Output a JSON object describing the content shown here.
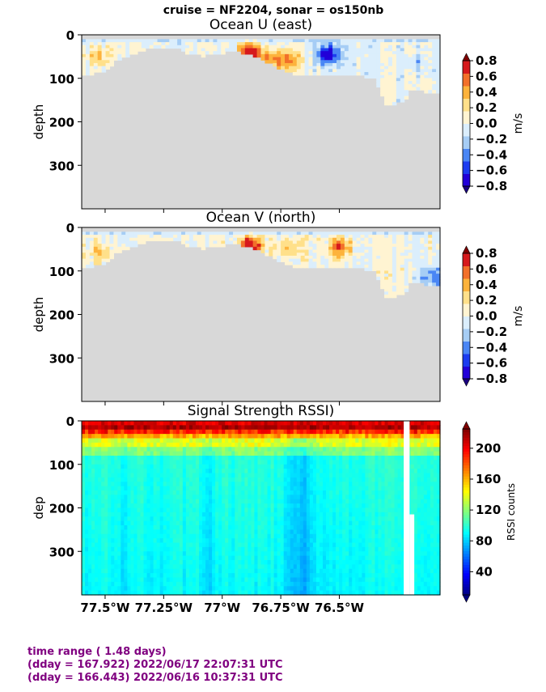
{
  "suptitle": "cruise = NF2204,  sonar = os150nb",
  "colors": {
    "land": "#d8d8d8",
    "footer": "#800080",
    "velocity_levels": [
      "#2200d8",
      "#1c3cf0",
      "#4a86f5",
      "#a6cdf5",
      "#dbeefc",
      "#fff4d2",
      "#ffe08a",
      "#fdb33c",
      "#f2702a",
      "#d6191c"
    ],
    "rssi_map": [
      "#00007f",
      "#0000ff",
      "#007fff",
      "#00ffff",
      "#7fff7f",
      "#ffff00",
      "#ff7f00",
      "#ff0000",
      "#7f0000"
    ]
  },
  "chart_data": [
    {
      "type": "heatmap",
      "title": "Ocean U (east)",
      "ylabel": "depth",
      "yticks": [
        "0",
        "100",
        "200",
        "300"
      ],
      "ylim": [
        400,
        0
      ],
      "xlim": [
        -77.6,
        -76.07
      ],
      "colorbar": {
        "label": "m/s",
        "ticks": [
          "0.8",
          "0.6",
          "0.4",
          "0.2",
          "0.0",
          "−0.2",
          "−0.4",
          "−0.6",
          "−0.8"
        ],
        "range": [
          -0.8,
          0.8
        ],
        "extend": "both"
      },
      "features": [
        {
          "lon": -76.88,
          "depth": 38,
          "value": 0.85
        },
        {
          "lon": -76.78,
          "depth": 55,
          "value": 0.45
        },
        {
          "lon": -76.71,
          "depth": 55,
          "value": 0.45
        },
        {
          "lon": -76.55,
          "depth": 42,
          "value": -0.85
        },
        {
          "lon": -77.53,
          "depth": 48,
          "value": 0.35
        },
        {
          "lon": -76.17,
          "depth": 60,
          "value": -0.2
        }
      ]
    },
    {
      "type": "heatmap",
      "title": "Ocean V (north)",
      "ylabel": "depth",
      "yticks": [
        "0",
        "100",
        "200",
        "300"
      ],
      "ylim": [
        400,
        0
      ],
      "xlim": [
        -77.6,
        -76.07
      ],
      "colorbar": {
        "label": "m/s",
        "ticks": [
          "0.8",
          "0.6",
          "0.4",
          "0.2",
          "0.0",
          "−0.2",
          "−0.4",
          "−0.6",
          "−0.8"
        ],
        "range": [
          -0.8,
          0.8
        ],
        "extend": "both"
      },
      "features": [
        {
          "lon": -76.88,
          "depth": 38,
          "value": 0.85
        },
        {
          "lon": -76.5,
          "depth": 42,
          "value": 0.55
        },
        {
          "lon": -76.7,
          "depth": 45,
          "value": 0.35
        },
        {
          "lon": -77.52,
          "depth": 52,
          "value": 0.3
        },
        {
          "lon": -76.1,
          "depth": 110,
          "value": -0.45
        }
      ]
    },
    {
      "type": "heatmap",
      "title": "Signal Strength RSSI)",
      "ylabel": "dep",
      "yticks": [
        "0",
        "100",
        "200",
        "300"
      ],
      "ylim": [
        400,
        0
      ],
      "xlim": [
        -77.6,
        -76.07
      ],
      "xticks": [
        {
          "value": -77.5,
          "label": "77.5°W"
        },
        {
          "value": -77.25,
          "label": "77.25°W"
        },
        {
          "value": -77.0,
          "label": "77°W"
        },
        {
          "value": -76.75,
          "label": "76.75°W"
        },
        {
          "value": -76.5,
          "label": "76.5°W"
        }
      ],
      "colorbar": {
        "label": "RSSI counts",
        "ticks": [
          "200",
          "160",
          "120",
          "80",
          "40"
        ],
        "range": [
          10,
          225
        ],
        "extend": "both"
      },
      "gaps": [
        {
          "lon_from": -76.225,
          "lon_to": -76.2,
          "depth_from": 0,
          "depth_to": 400
        },
        {
          "lon_from": -76.2,
          "lon_to": -76.18,
          "depth_from": 215,
          "depth_to": 400
        }
      ]
    }
  ],
  "footer": [
    "time range ( 1.48 days)",
    "(dday = 167.922) 2022/06/17 22:07:31 UTC",
    "(dday = 166.443) 2022/06/16 10:37:31 UTC"
  ]
}
